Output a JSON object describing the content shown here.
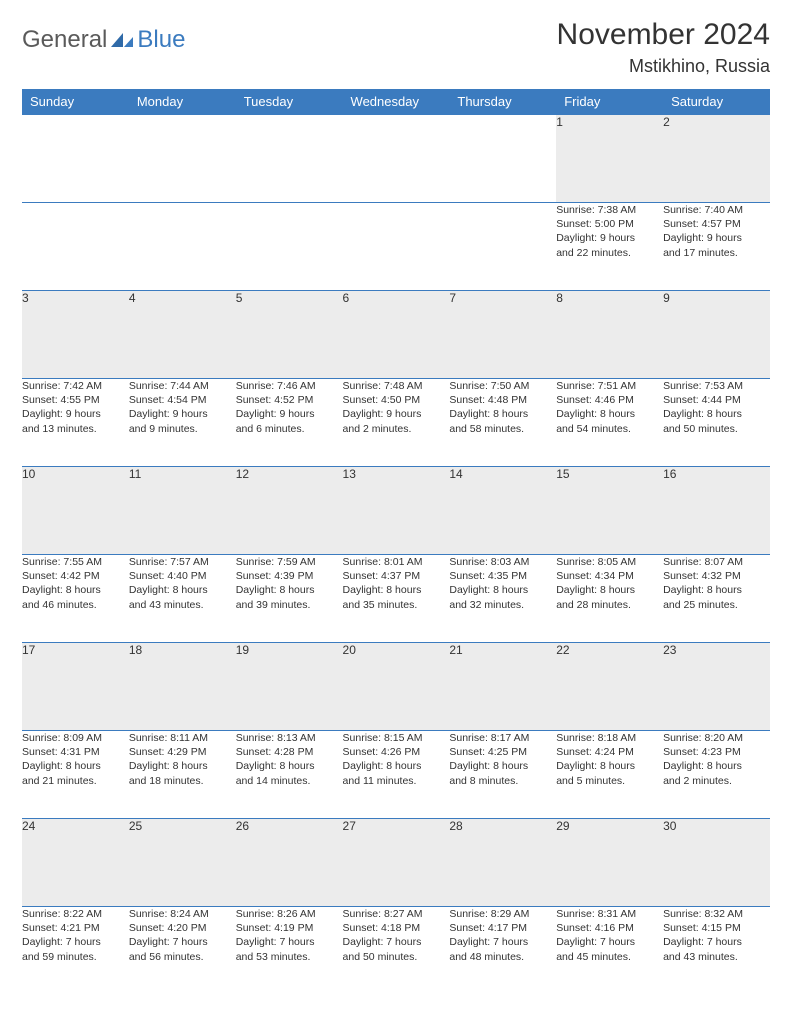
{
  "brand": {
    "name_part1": "General",
    "name_part2": "Blue"
  },
  "title": "November 2024",
  "location": "Mstikhino, Russia",
  "colors": {
    "header_bg": "#3b7bbf",
    "header_text": "#ffffff",
    "daynum_bg": "#ececec",
    "border": "#3b7bbf",
    "text": "#333333",
    "logo_gray": "#5a5a5a",
    "logo_blue": "#3b7bbf",
    "page_bg": "#ffffff"
  },
  "weekdays": [
    "Sunday",
    "Monday",
    "Tuesday",
    "Wednesday",
    "Thursday",
    "Friday",
    "Saturday"
  ],
  "weeks": [
    [
      null,
      null,
      null,
      null,
      null,
      {
        "n": "1",
        "sr": "Sunrise: 7:38 AM",
        "ss": "Sunset: 5:00 PM",
        "d1": "Daylight: 9 hours",
        "d2": "and 22 minutes."
      },
      {
        "n": "2",
        "sr": "Sunrise: 7:40 AM",
        "ss": "Sunset: 4:57 PM",
        "d1": "Daylight: 9 hours",
        "d2": "and 17 minutes."
      }
    ],
    [
      {
        "n": "3",
        "sr": "Sunrise: 7:42 AM",
        "ss": "Sunset: 4:55 PM",
        "d1": "Daylight: 9 hours",
        "d2": "and 13 minutes."
      },
      {
        "n": "4",
        "sr": "Sunrise: 7:44 AM",
        "ss": "Sunset: 4:54 PM",
        "d1": "Daylight: 9 hours",
        "d2": "and 9 minutes."
      },
      {
        "n": "5",
        "sr": "Sunrise: 7:46 AM",
        "ss": "Sunset: 4:52 PM",
        "d1": "Daylight: 9 hours",
        "d2": "and 6 minutes."
      },
      {
        "n": "6",
        "sr": "Sunrise: 7:48 AM",
        "ss": "Sunset: 4:50 PM",
        "d1": "Daylight: 9 hours",
        "d2": "and 2 minutes."
      },
      {
        "n": "7",
        "sr": "Sunrise: 7:50 AM",
        "ss": "Sunset: 4:48 PM",
        "d1": "Daylight: 8 hours",
        "d2": "and 58 minutes."
      },
      {
        "n": "8",
        "sr": "Sunrise: 7:51 AM",
        "ss": "Sunset: 4:46 PM",
        "d1": "Daylight: 8 hours",
        "d2": "and 54 minutes."
      },
      {
        "n": "9",
        "sr": "Sunrise: 7:53 AM",
        "ss": "Sunset: 4:44 PM",
        "d1": "Daylight: 8 hours",
        "d2": "and 50 minutes."
      }
    ],
    [
      {
        "n": "10",
        "sr": "Sunrise: 7:55 AM",
        "ss": "Sunset: 4:42 PM",
        "d1": "Daylight: 8 hours",
        "d2": "and 46 minutes."
      },
      {
        "n": "11",
        "sr": "Sunrise: 7:57 AM",
        "ss": "Sunset: 4:40 PM",
        "d1": "Daylight: 8 hours",
        "d2": "and 43 minutes."
      },
      {
        "n": "12",
        "sr": "Sunrise: 7:59 AM",
        "ss": "Sunset: 4:39 PM",
        "d1": "Daylight: 8 hours",
        "d2": "and 39 minutes."
      },
      {
        "n": "13",
        "sr": "Sunrise: 8:01 AM",
        "ss": "Sunset: 4:37 PM",
        "d1": "Daylight: 8 hours",
        "d2": "and 35 minutes."
      },
      {
        "n": "14",
        "sr": "Sunrise: 8:03 AM",
        "ss": "Sunset: 4:35 PM",
        "d1": "Daylight: 8 hours",
        "d2": "and 32 minutes."
      },
      {
        "n": "15",
        "sr": "Sunrise: 8:05 AM",
        "ss": "Sunset: 4:34 PM",
        "d1": "Daylight: 8 hours",
        "d2": "and 28 minutes."
      },
      {
        "n": "16",
        "sr": "Sunrise: 8:07 AM",
        "ss": "Sunset: 4:32 PM",
        "d1": "Daylight: 8 hours",
        "d2": "and 25 minutes."
      }
    ],
    [
      {
        "n": "17",
        "sr": "Sunrise: 8:09 AM",
        "ss": "Sunset: 4:31 PM",
        "d1": "Daylight: 8 hours",
        "d2": "and 21 minutes."
      },
      {
        "n": "18",
        "sr": "Sunrise: 8:11 AM",
        "ss": "Sunset: 4:29 PM",
        "d1": "Daylight: 8 hours",
        "d2": "and 18 minutes."
      },
      {
        "n": "19",
        "sr": "Sunrise: 8:13 AM",
        "ss": "Sunset: 4:28 PM",
        "d1": "Daylight: 8 hours",
        "d2": "and 14 minutes."
      },
      {
        "n": "20",
        "sr": "Sunrise: 8:15 AM",
        "ss": "Sunset: 4:26 PM",
        "d1": "Daylight: 8 hours",
        "d2": "and 11 minutes."
      },
      {
        "n": "21",
        "sr": "Sunrise: 8:17 AM",
        "ss": "Sunset: 4:25 PM",
        "d1": "Daylight: 8 hours",
        "d2": "and 8 minutes."
      },
      {
        "n": "22",
        "sr": "Sunrise: 8:18 AM",
        "ss": "Sunset: 4:24 PM",
        "d1": "Daylight: 8 hours",
        "d2": "and 5 minutes."
      },
      {
        "n": "23",
        "sr": "Sunrise: 8:20 AM",
        "ss": "Sunset: 4:23 PM",
        "d1": "Daylight: 8 hours",
        "d2": "and 2 minutes."
      }
    ],
    [
      {
        "n": "24",
        "sr": "Sunrise: 8:22 AM",
        "ss": "Sunset: 4:21 PM",
        "d1": "Daylight: 7 hours",
        "d2": "and 59 minutes."
      },
      {
        "n": "25",
        "sr": "Sunrise: 8:24 AM",
        "ss": "Sunset: 4:20 PM",
        "d1": "Daylight: 7 hours",
        "d2": "and 56 minutes."
      },
      {
        "n": "26",
        "sr": "Sunrise: 8:26 AM",
        "ss": "Sunset: 4:19 PM",
        "d1": "Daylight: 7 hours",
        "d2": "and 53 minutes."
      },
      {
        "n": "27",
        "sr": "Sunrise: 8:27 AM",
        "ss": "Sunset: 4:18 PM",
        "d1": "Daylight: 7 hours",
        "d2": "and 50 minutes."
      },
      {
        "n": "28",
        "sr": "Sunrise: 8:29 AM",
        "ss": "Sunset: 4:17 PM",
        "d1": "Daylight: 7 hours",
        "d2": "and 48 minutes."
      },
      {
        "n": "29",
        "sr": "Sunrise: 8:31 AM",
        "ss": "Sunset: 4:16 PM",
        "d1": "Daylight: 7 hours",
        "d2": "and 45 minutes."
      },
      {
        "n": "30",
        "sr": "Sunrise: 8:32 AM",
        "ss": "Sunset: 4:15 PM",
        "d1": "Daylight: 7 hours",
        "d2": "and 43 minutes."
      }
    ]
  ]
}
